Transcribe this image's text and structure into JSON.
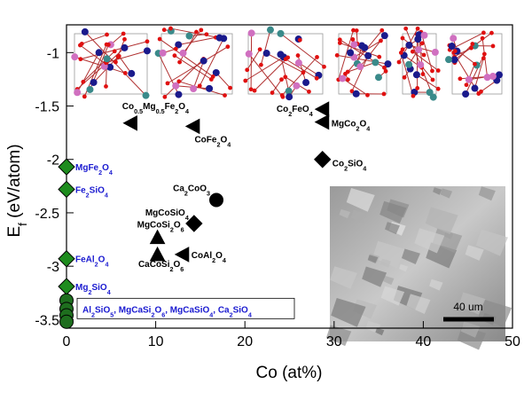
{
  "chart_data": {
    "type": "scatter",
    "x_label": "Co (at%)",
    "y_label": "Ef (eV/atom)",
    "xlim": [
      0,
      50
    ],
    "ylim": [
      -3.58,
      -0.74
    ],
    "xticks": [
      0,
      10,
      20,
      30,
      40,
      50
    ],
    "yticks": [
      -3.5,
      -3,
      -2.5,
      -2,
      -1.5,
      -1
    ],
    "series": [
      {
        "marker": "triangle-left",
        "color": "#000000",
        "label_color": "#000000",
        "x": [
          7.2,
          14.2,
          28.7,
          28.7,
          13.0
        ],
        "y": [
          -1.66,
          -1.69,
          -1.53,
          -1.65,
          -2.89
        ],
        "labels": [
          "Co0.5Mg0.5Fe2O4",
          "CoFe2O4",
          "Co2FeO4",
          "MgCo2O4",
          "CoAl2O4"
        ]
      },
      {
        "marker": "triangle-up",
        "color": "#000000",
        "label_color": "#000000",
        "x": [
          10.2,
          10.2
        ],
        "y": [
          -2.73,
          -2.89
        ],
        "labels": [
          "MgCoSi2O6",
          "CaCoSi2O6"
        ]
      },
      {
        "marker": "diamond",
        "color": "#000000",
        "label_color": "#000000",
        "x": [
          28.7,
          14.3
        ],
        "y": [
          -2.0,
          -2.6
        ],
        "labels": [
          "Co2SiO4",
          "MgCoSiO4"
        ]
      },
      {
        "marker": "circle",
        "color": "#000000",
        "label_color": "#000000",
        "x": [
          16.8
        ],
        "y": [
          -2.38
        ],
        "labels": [
          "Ca2CoO3"
        ]
      },
      {
        "marker": "diamond",
        "color": "#1e8c1e",
        "label_color": "#1a1ad0",
        "x": [
          0,
          0,
          0,
          0
        ],
        "y": [
          -2.07,
          -2.28,
          -2.93,
          -3.19
        ],
        "labels": [
          "MgFe2O4",
          "Fe2SiO4",
          "FeAl2O4",
          "Mg2SiO4"
        ]
      },
      {
        "marker": "circle",
        "color": "#1e6e1e",
        "label_color": "#1a1ad0",
        "x": [
          0,
          0,
          0,
          0
        ],
        "y": [
          -3.32,
          -3.4,
          -3.46,
          -3.52
        ],
        "group_label": "Al2SiO5, MgCaSi2O6, MgCaSiO4, Ca2SiO4"
      }
    ]
  },
  "inset": {
    "scale_label": "40 um"
  }
}
